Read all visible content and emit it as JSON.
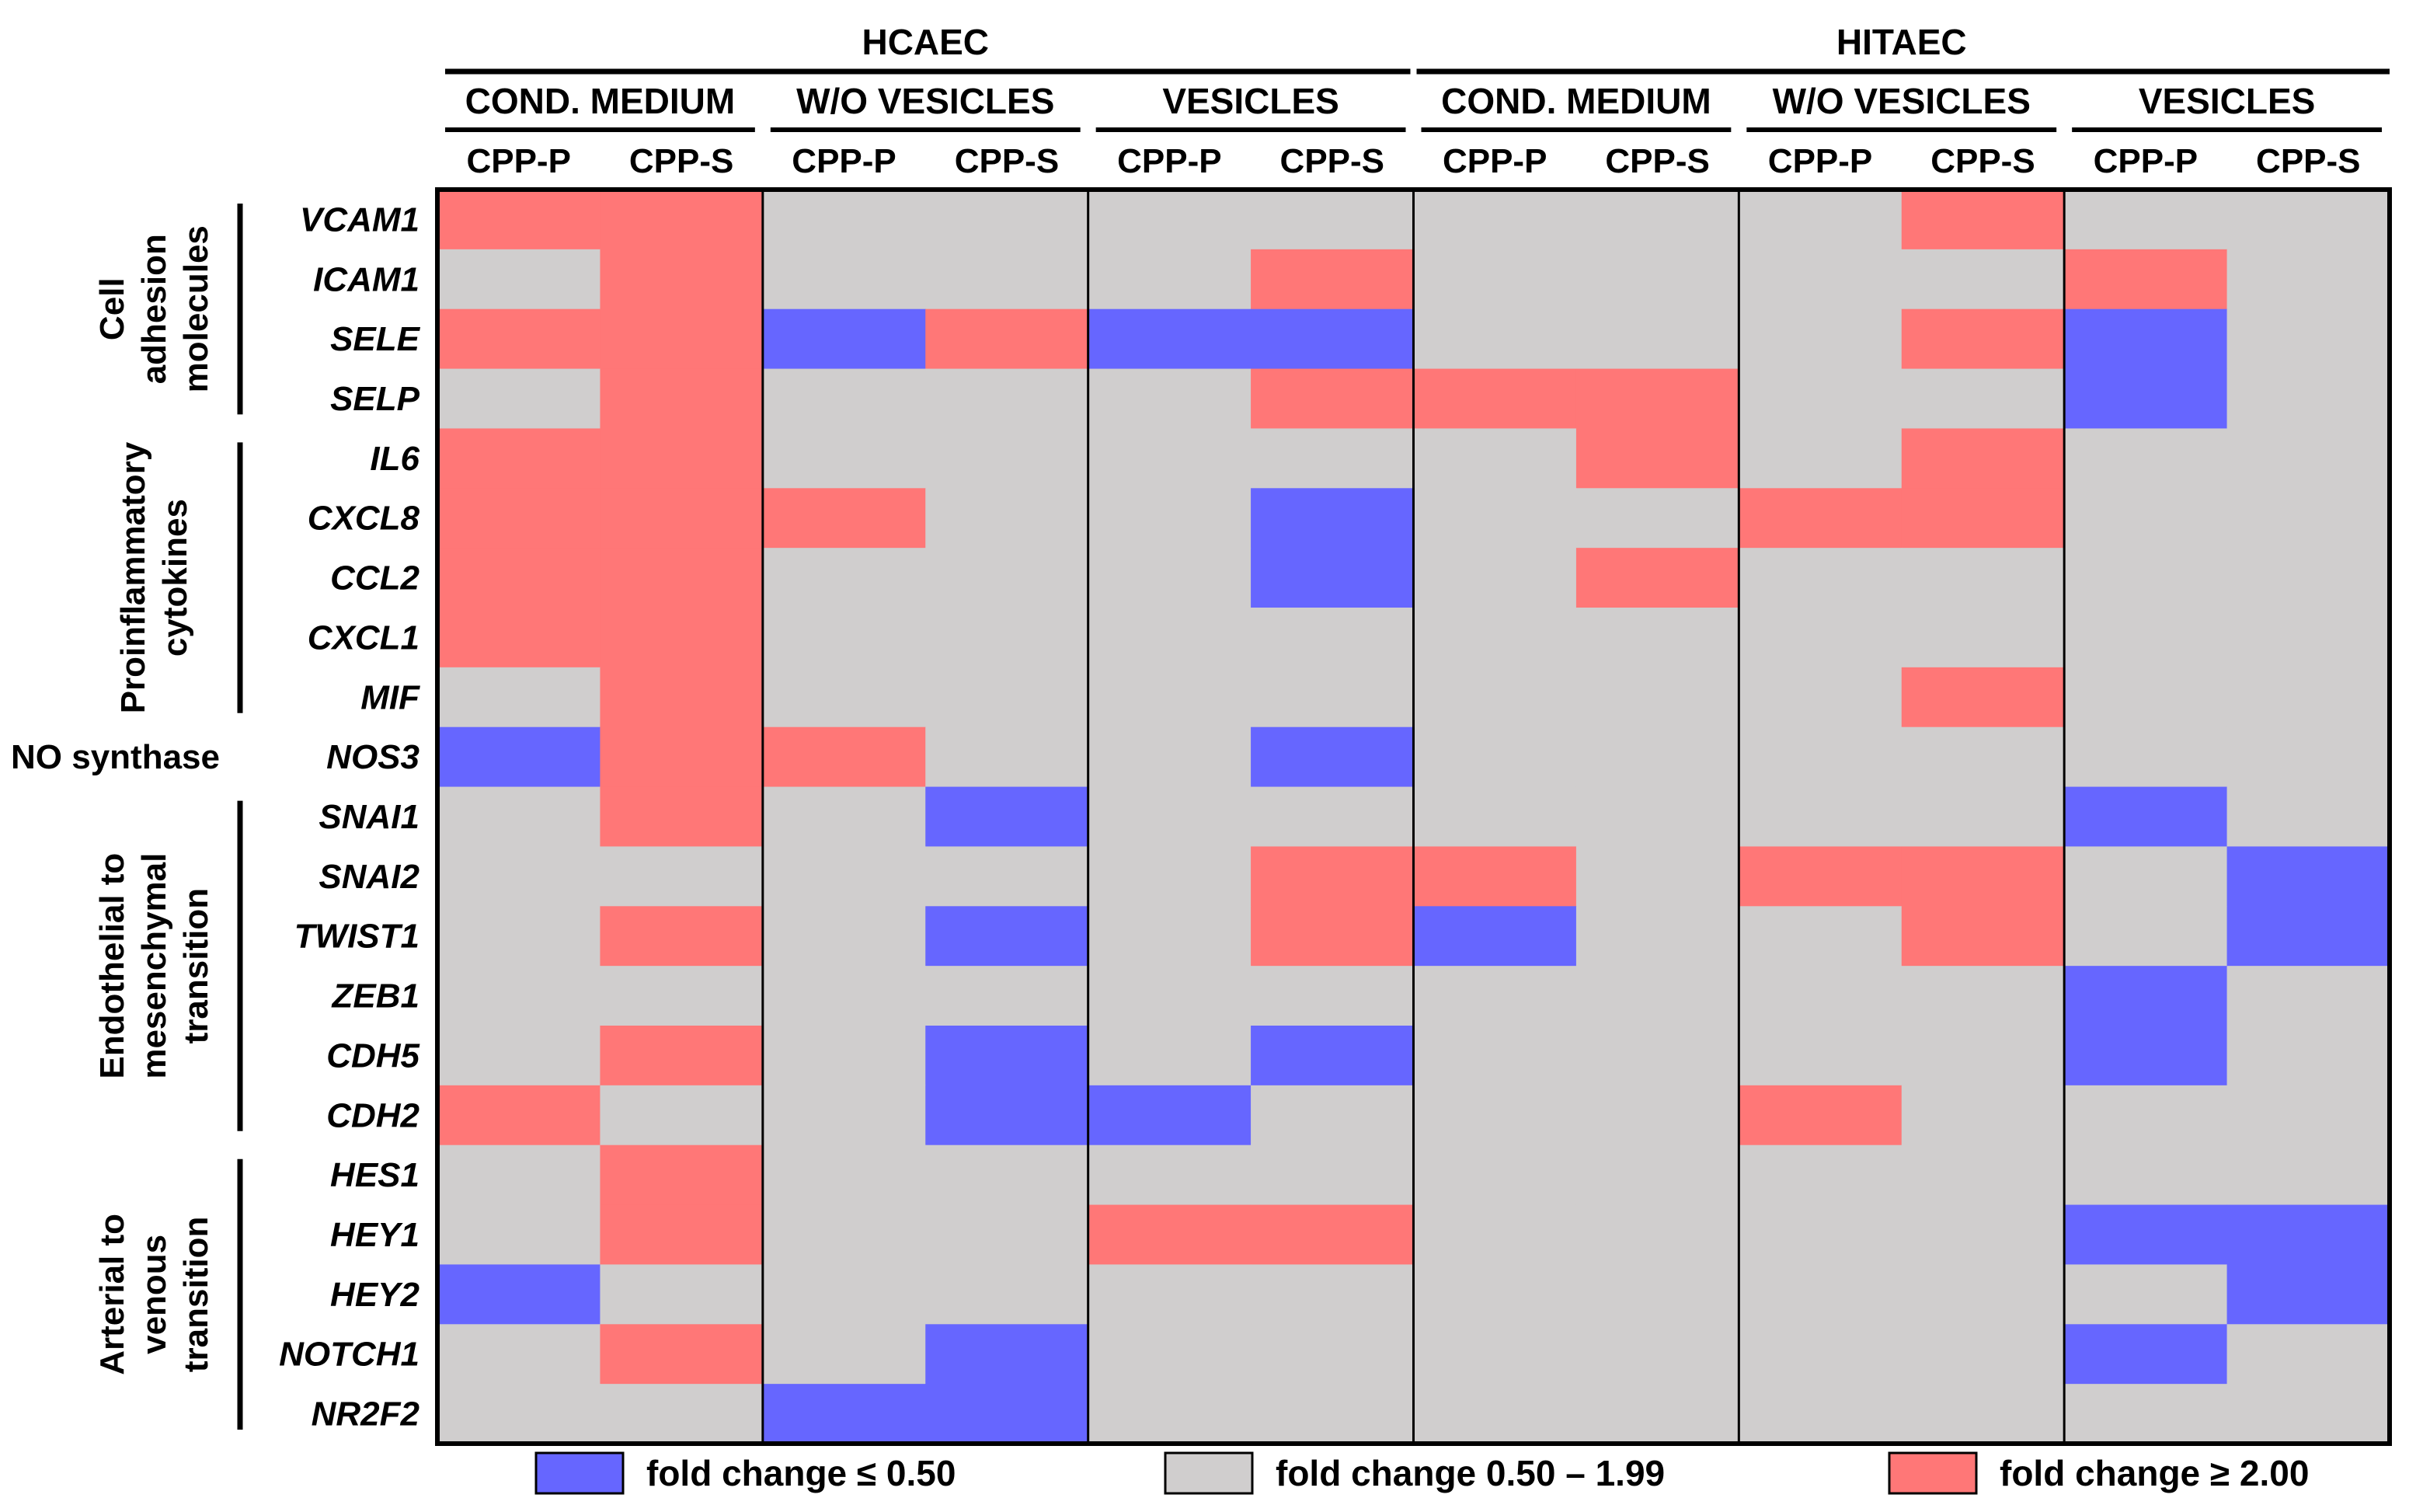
{
  "colors": {
    "down": "#6666ff",
    "unchanged": "#d0cece",
    "up": "#ff7777",
    "line": "#000000"
  },
  "chart_data": {
    "type": "heatmap",
    "cell_lines": [
      "HCAEC",
      "HITAEC"
    ],
    "treatments": [
      "COND. MEDIUM",
      "W/O VESICLES",
      "VESICLES"
    ],
    "conditions": [
      "CPP-P",
      "CPP-S"
    ],
    "columns": [
      {
        "cell_line": "HCAEC",
        "treatment": "COND. MEDIUM",
        "condition": "CPP-P"
      },
      {
        "cell_line": "HCAEC",
        "treatment": "COND. MEDIUM",
        "condition": "CPP-S"
      },
      {
        "cell_line": "HCAEC",
        "treatment": "W/O VESICLES",
        "condition": "CPP-P"
      },
      {
        "cell_line": "HCAEC",
        "treatment": "W/O VESICLES",
        "condition": "CPP-S"
      },
      {
        "cell_line": "HCAEC",
        "treatment": "VESICLES",
        "condition": "CPP-P"
      },
      {
        "cell_line": "HCAEC",
        "treatment": "VESICLES",
        "condition": "CPP-S"
      },
      {
        "cell_line": "HITAEC",
        "treatment": "COND. MEDIUM",
        "condition": "CPP-P"
      },
      {
        "cell_line": "HITAEC",
        "treatment": "COND. MEDIUM",
        "condition": "CPP-S"
      },
      {
        "cell_line": "HITAEC",
        "treatment": "W/O VESICLES",
        "condition": "CPP-P"
      },
      {
        "cell_line": "HITAEC",
        "treatment": "W/O VESICLES",
        "condition": "CPP-S"
      },
      {
        "cell_line": "HITAEC",
        "treatment": "VESICLES",
        "condition": "CPP-P"
      },
      {
        "cell_line": "HITAEC",
        "treatment": "VESICLES",
        "condition": "CPP-S"
      }
    ],
    "genes": [
      "VCAM1",
      "ICAM1",
      "SELE",
      "SELP",
      "IL6",
      "CXCL8",
      "CCL2",
      "CXCL1",
      "MIF",
      "NOS3",
      "SNAI1",
      "SNAI2",
      "TWIST1",
      "ZEB1",
      "CDH5",
      "CDH2",
      "HES1",
      "HEY1",
      "HEY2",
      "NOTCH1",
      "NR2F2"
    ],
    "gene_groups": [
      {
        "label_lines": [
          "Cell",
          "adhesion",
          "molecules"
        ],
        "genes": [
          "VCAM1",
          "ICAM1",
          "SELE",
          "SELP"
        ]
      },
      {
        "label_lines": [
          "Proinflammatory",
          "cytokines"
        ],
        "genes": [
          "IL6",
          "CXCL8",
          "CCL2",
          "CXCL1",
          "MIF"
        ]
      },
      {
        "label_lines": [
          "NO synthase"
        ],
        "genes": [
          "NOS3"
        ]
      },
      {
        "label_lines": [
          "Endothelial to",
          "mesenchymal",
          "transition"
        ],
        "genes": [
          "SNAI1",
          "SNAI2",
          "TWIST1",
          "ZEB1",
          "CDH5",
          "CDH2"
        ]
      },
      {
        "label_lines": [
          "Arterial to",
          "venous",
          "transition"
        ],
        "genes": [
          "HES1",
          "HEY1",
          "HEY2",
          "NOTCH1",
          "NR2F2"
        ]
      }
    ],
    "category_codes": {
      "-1": "fold change ≤ 0.50",
      "0": "fold change 0.50 – 1.99",
      "1": "fold change ≥ 2.00"
    },
    "values": [
      [
        1,
        1,
        0,
        0,
        0,
        0,
        0,
        0,
        0,
        1,
        0,
        0
      ],
      [
        0,
        1,
        0,
        0,
        0,
        1,
        0,
        0,
        0,
        0,
        1,
        0
      ],
      [
        1,
        1,
        -1,
        1,
        -1,
        -1,
        0,
        0,
        0,
        1,
        -1,
        0
      ],
      [
        0,
        1,
        0,
        0,
        0,
        1,
        1,
        1,
        0,
        0,
        -1,
        0
      ],
      [
        1,
        1,
        0,
        0,
        0,
        0,
        0,
        1,
        0,
        1,
        0,
        0
      ],
      [
        1,
        1,
        1,
        0,
        0,
        -1,
        0,
        0,
        1,
        1,
        0,
        0
      ],
      [
        1,
        1,
        0,
        0,
        0,
        -1,
        0,
        1,
        0,
        0,
        0,
        0
      ],
      [
        1,
        1,
        0,
        0,
        0,
        0,
        0,
        0,
        0,
        0,
        0,
        0
      ],
      [
        0,
        1,
        0,
        0,
        0,
        0,
        0,
        0,
        0,
        1,
        0,
        0
      ],
      [
        -1,
        1,
        1,
        0,
        0,
        -1,
        0,
        0,
        0,
        0,
        0,
        0
      ],
      [
        0,
        1,
        0,
        -1,
        0,
        0,
        0,
        0,
        0,
        0,
        -1,
        0
      ],
      [
        0,
        0,
        0,
        0,
        0,
        1,
        1,
        0,
        1,
        1,
        0,
        -1
      ],
      [
        0,
        1,
        0,
        -1,
        0,
        1,
        -1,
        0,
        0,
        1,
        0,
        -1
      ],
      [
        0,
        0,
        0,
        0,
        0,
        0,
        0,
        0,
        0,
        0,
        -1,
        0
      ],
      [
        0,
        1,
        0,
        -1,
        0,
        -1,
        0,
        0,
        0,
        0,
        -1,
        0
      ],
      [
        1,
        0,
        0,
        -1,
        -1,
        0,
        0,
        0,
        1,
        0,
        0,
        0
      ],
      [
        0,
        1,
        0,
        0,
        0,
        0,
        0,
        0,
        0,
        0,
        0,
        0
      ],
      [
        0,
        1,
        0,
        0,
        1,
        1,
        0,
        0,
        0,
        0,
        -1,
        -1
      ],
      [
        -1,
        0,
        0,
        0,
        0,
        0,
        0,
        0,
        0,
        0,
        0,
        -1
      ],
      [
        0,
        1,
        0,
        -1,
        0,
        0,
        0,
        0,
        0,
        0,
        -1,
        0
      ],
      [
        0,
        0,
        -1,
        -1,
        0,
        0,
        0,
        0,
        0,
        0,
        0,
        0
      ]
    ],
    "legend": [
      {
        "code": -1,
        "label": "fold change ≤ 0.50"
      },
      {
        "code": 0,
        "label": "fold change 0.50 – 1.99"
      },
      {
        "code": 1,
        "label": "fold change ≥ 2.00"
      }
    ],
    "legend_placement": "bottom"
  }
}
